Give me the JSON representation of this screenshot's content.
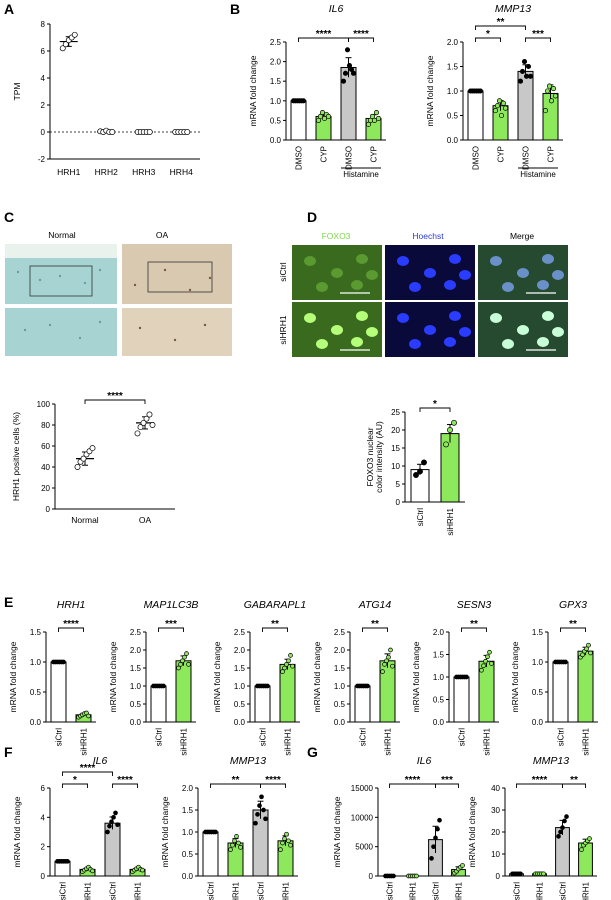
{
  "colors": {
    "green": "#8ee85c",
    "white": "#ffffff",
    "gray": "#c8c8c8",
    "axis": "#000000",
    "fluor_green": "#7fd94a",
    "fluor_blue": "#2430d8",
    "stain_blue": "#a7d4d2",
    "stain_brown": "#c8b8a0"
  },
  "panels": {
    "A": "A",
    "B": "B",
    "C": "C",
    "D": "D",
    "E": "E",
    "F": "F",
    "G": "G"
  },
  "panel_c": {
    "normal": "Normal",
    "oa": "OA"
  },
  "panel_d": {
    "foxo3": "FOXO3",
    "hoechst": "Hoechst",
    "merge": "Merge",
    "sictrl": "siCtrl",
    "sihrh1": "siHRH1"
  },
  "chart_data": [
    {
      "id": "A",
      "type": "scatter",
      "ylabel": "TPM",
      "ylim": [
        -2,
        8
      ],
      "yticks": [
        -2,
        0,
        2,
        4,
        6,
        8
      ],
      "categories": [
        "HRH1",
        "HRH2",
        "HRH3",
        "HRH4"
      ],
      "values": [
        6.7,
        0.0,
        0.0,
        0.0
      ],
      "points": [
        [
          6.2,
          6.5,
          6.8,
          7.0,
          7.2
        ],
        [
          0.05,
          0.0,
          0.1,
          0.0,
          0.0
        ],
        [
          0,
          0,
          0,
          0,
          0
        ],
        [
          0,
          0,
          0,
          0,
          0
        ]
      ],
      "reference_line": 0
    },
    {
      "id": "B1",
      "type": "bar",
      "title": "IL6",
      "ylabel": "mRNA fold change",
      "ylim": [
        0,
        2.5
      ],
      "yticks": [
        0.0,
        0.5,
        1.0,
        1.5,
        2.0,
        2.5
      ],
      "categories": [
        "DMSO",
        "CYP",
        "DMSO",
        "CYP"
      ],
      "group_label": "Histamine",
      "values": [
        1.0,
        0.6,
        1.85,
        0.55
      ],
      "bar_colors": [
        "white",
        "green",
        "gray",
        "green"
      ],
      "points": [
        [
          1,
          1,
          1,
          1,
          1,
          1
        ],
        [
          0.5,
          0.6,
          0.7,
          0.55,
          0.65,
          0.6
        ],
        [
          1.5,
          1.7,
          2.3,
          1.9,
          1.8,
          1.7
        ],
        [
          0.4,
          0.5,
          0.6,
          0.5,
          0.7,
          0.55
        ]
      ],
      "sig": [
        {
          "from": 0,
          "to": 2,
          "label": "****",
          "level": 0
        },
        {
          "from": 2,
          "to": 3,
          "label": "****",
          "level": 0
        }
      ]
    },
    {
      "id": "B2",
      "type": "bar",
      "title": "MMP13",
      "ylabel": "mRNA fold change",
      "ylim": [
        0,
        2.0
      ],
      "yticks": [
        0.0,
        0.5,
        1.0,
        1.5,
        2.0
      ],
      "categories": [
        "DMSO",
        "CYP",
        "DMSO",
        "CYP"
      ],
      "group_label": "Histamine",
      "values": [
        1.0,
        0.7,
        1.4,
        0.95
      ],
      "bar_colors": [
        "white",
        "green",
        "gray",
        "green"
      ],
      "points": [
        [
          1,
          1,
          1,
          1,
          1,
          1
        ],
        [
          0.6,
          0.7,
          0.8,
          0.5,
          0.75,
          0.65
        ],
        [
          1.2,
          1.4,
          1.6,
          1.3,
          1.5,
          1.3
        ],
        [
          0.6,
          1.0,
          1.1,
          0.8,
          1.05,
          0.9
        ]
      ],
      "sig": [
        {
          "from": 0,
          "to": 1,
          "label": "*",
          "level": 0
        },
        {
          "from": 2,
          "to": 3,
          "label": "***",
          "level": 0
        },
        {
          "from": 0,
          "to": 2,
          "label": "**",
          "level": 1
        }
      ]
    },
    {
      "id": "C",
      "type": "scatter",
      "ylabel": "HRH1 positive cells (%)",
      "ylim": [
        0,
        100
      ],
      "yticks": [
        0,
        20,
        40,
        60,
        80,
        100
      ],
      "categories": [
        "Normal",
        "OA"
      ],
      "values": [
        48,
        82
      ],
      "points": [
        [
          40,
          45,
          48,
          52,
          55,
          58
        ],
        [
          72,
          78,
          82,
          86,
          90,
          80
        ]
      ],
      "sig": [
        {
          "from": 0,
          "to": 1,
          "label": "****",
          "level": 0
        }
      ]
    },
    {
      "id": "D",
      "type": "bar",
      "ylabel": "FOXO3 nuclear color intensity (AU)",
      "ylim": [
        0,
        25
      ],
      "yticks": [
        0,
        5,
        10,
        15,
        20,
        25
      ],
      "categories": [
        "siCtrl",
        "siHRH1"
      ],
      "values": [
        9,
        19
      ],
      "bar_colors": [
        "white",
        "green"
      ],
      "points": [
        [
          7.5,
          8.5,
          11
        ],
        [
          16,
          20,
          22
        ]
      ],
      "sig": [
        {
          "from": 0,
          "to": 1,
          "label": "*",
          "level": 0
        }
      ]
    },
    {
      "id": "E1",
      "type": "bar",
      "title": "HRH1",
      "ylabel": "mRNA fold change",
      "ylim": [
        0,
        1.5
      ],
      "yticks": [
        0.0,
        0.5,
        1.0,
        1.5
      ],
      "categories": [
        "siCtrl",
        "siHRH1"
      ],
      "values": [
        1.0,
        0.12
      ],
      "bar_colors": [
        "white",
        "green"
      ],
      "points": [
        [
          1,
          1,
          1,
          1,
          1,
          1
        ],
        [
          0.08,
          0.1,
          0.12,
          0.14,
          0.15,
          0.1
        ]
      ],
      "sig": [
        {
          "from": 0,
          "to": 1,
          "label": "****",
          "level": 0
        }
      ]
    },
    {
      "id": "E2",
      "type": "bar",
      "title": "MAP1LC3B",
      "ylabel": "mRNA fold change",
      "ylim": [
        0,
        2.5
      ],
      "yticks": [
        0.0,
        0.5,
        1.0,
        1.5,
        2.0,
        2.5
      ],
      "categories": [
        "siCtrl",
        "siHRH1"
      ],
      "values": [
        1.0,
        1.7
      ],
      "bar_colors": [
        "white",
        "green"
      ],
      "points": [
        [
          1,
          1,
          1,
          1,
          1,
          1
        ],
        [
          1.5,
          1.6,
          1.7,
          1.8,
          1.9,
          1.6
        ]
      ],
      "sig": [
        {
          "from": 0,
          "to": 1,
          "label": "***",
          "level": 0
        }
      ]
    },
    {
      "id": "E3",
      "type": "bar",
      "title": "GABARAPL1",
      "ylabel": "mRNA fold change",
      "ylim": [
        0,
        2.5
      ],
      "yticks": [
        0.0,
        0.5,
        1.0,
        1.5,
        2.0,
        2.5
      ],
      "categories": [
        "siCtrl",
        "siHRH1"
      ],
      "values": [
        1.0,
        1.6
      ],
      "bar_colors": [
        "white",
        "green"
      ],
      "points": [
        [
          1,
          1,
          1,
          1,
          1,
          1
        ],
        [
          1.4,
          1.5,
          1.6,
          1.7,
          1.85,
          1.55
        ]
      ],
      "sig": [
        {
          "from": 0,
          "to": 1,
          "label": "**",
          "level": 0
        }
      ]
    },
    {
      "id": "E4",
      "type": "bar",
      "title": "ATG14",
      "ylabel": "mRNA fold change",
      "ylim": [
        0,
        2.5
      ],
      "yticks": [
        0.0,
        0.5,
        1.0,
        1.5,
        2.0,
        2.5
      ],
      "categories": [
        "siCtrl",
        "siHRH1"
      ],
      "values": [
        1.0,
        1.7
      ],
      "bar_colors": [
        "white",
        "green"
      ],
      "points": [
        [
          1,
          1,
          1,
          1,
          1,
          1
        ],
        [
          1.4,
          1.6,
          1.7,
          1.8,
          2.0,
          1.55
        ]
      ],
      "sig": [
        {
          "from": 0,
          "to": 1,
          "label": "**",
          "level": 0
        }
      ]
    },
    {
      "id": "E5",
      "type": "bar",
      "title": "SESN3",
      "ylabel": "mRNA fold change",
      "ylim": [
        0,
        2.0
      ],
      "yticks": [
        0.0,
        0.5,
        1.0,
        1.5,
        2.0
      ],
      "categories": [
        "siCtrl",
        "siHRH1"
      ],
      "values": [
        1.0,
        1.35
      ],
      "bar_colors": [
        "white",
        "green"
      ],
      "points": [
        [
          1,
          1,
          1,
          1,
          1,
          1
        ],
        [
          1.15,
          1.25,
          1.35,
          1.45,
          1.55,
          1.3
        ]
      ],
      "sig": [
        {
          "from": 0,
          "to": 1,
          "label": "**",
          "level": 0
        }
      ]
    },
    {
      "id": "E6",
      "type": "bar",
      "title": "GPX3",
      "ylabel": "mRNA fold change",
      "ylim": [
        0,
        1.5
      ],
      "yticks": [
        0.0,
        0.5,
        1.0,
        1.5
      ],
      "categories": [
        "siCtrl",
        "siHRH1"
      ],
      "values": [
        1.0,
        1.18
      ],
      "bar_colors": [
        "white",
        "green"
      ],
      "points": [
        [
          1,
          1,
          1,
          1,
          1,
          1
        ],
        [
          1.08,
          1.12,
          1.18,
          1.22,
          1.28,
          1.15
        ]
      ],
      "sig": [
        {
          "from": 0,
          "to": 1,
          "label": "**",
          "level": 0
        }
      ]
    },
    {
      "id": "F1",
      "type": "bar",
      "title": "IL6",
      "ylabel": "mRNA fold change",
      "ylim": [
        0,
        6
      ],
      "yticks": [
        0,
        2,
        4,
        6
      ],
      "categories": [
        "siCtrl",
        "siHRH1",
        "siCtrl",
        "siHRH1"
      ],
      "group_label": "Histamine",
      "values": [
        1.0,
        0.45,
        3.6,
        0.45
      ],
      "bar_colors": [
        "white",
        "green",
        "gray",
        "green"
      ],
      "points": [
        [
          1,
          1,
          1,
          1,
          1,
          1
        ],
        [
          0.3,
          0.4,
          0.5,
          0.6,
          0.45,
          0.35
        ],
        [
          3.0,
          3.4,
          3.7,
          4.0,
          4.3,
          3.5
        ],
        [
          0.3,
          0.4,
          0.5,
          0.6,
          0.45,
          0.4
        ]
      ],
      "sig": [
        {
          "from": 0,
          "to": 1,
          "label": "*",
          "level": 0
        },
        {
          "from": 2,
          "to": 3,
          "label": "****",
          "level": 0
        },
        {
          "from": 0,
          "to": 2,
          "label": "****",
          "level": 1
        }
      ]
    },
    {
      "id": "F2",
      "type": "bar",
      "title": "MMP13",
      "ylabel": "mRNA fold change",
      "ylim": [
        0,
        2.0
      ],
      "yticks": [
        0.0,
        0.5,
        1.0,
        1.5,
        2.0
      ],
      "categories": [
        "siCtrl",
        "siHRH1",
        "siCtrl",
        "siHRH1"
      ],
      "group_label": "Histamine",
      "values": [
        1.0,
        0.75,
        1.5,
        0.8
      ],
      "bar_colors": [
        "white",
        "green",
        "gray",
        "green"
      ],
      "points": [
        [
          1,
          1,
          1,
          1,
          1,
          1
        ],
        [
          0.6,
          0.7,
          0.8,
          0.9,
          0.75,
          0.65
        ],
        [
          1.2,
          1.4,
          1.6,
          1.8,
          1.5,
          1.3
        ],
        [
          0.6,
          0.75,
          0.85,
          0.95,
          0.8,
          0.7
        ]
      ],
      "sig": [
        {
          "from": 0,
          "to": 2,
          "label": "**",
          "level": 0
        },
        {
          "from": 2,
          "to": 3,
          "label": "****",
          "level": 0
        }
      ]
    },
    {
      "id": "G1",
      "type": "bar",
      "title": "IL6",
      "ylabel": "mRNA fold change",
      "ylim": [
        0,
        15000
      ],
      "yticks": [
        0,
        5000,
        10000,
        15000
      ],
      "categories": [
        "siCtrl",
        "siHRH1",
        "siCtrl",
        "siHRH1"
      ],
      "group_label": "IL-1β",
      "values": [
        10,
        10,
        6200,
        1100
      ],
      "bar_colors": [
        "white",
        "green",
        "gray",
        "green"
      ],
      "points": [
        [
          1,
          1,
          1,
          1,
          1
        ],
        [
          1,
          1,
          1,
          1,
          1
        ],
        [
          3000,
          5000,
          6500,
          8000,
          9500
        ],
        [
          500,
          800,
          1200,
          1500,
          1800
        ]
      ],
      "sig": [
        {
          "from": 0,
          "to": 2,
          "label": "****",
          "level": 0
        },
        {
          "from": 2,
          "to": 3,
          "label": "***",
          "level": 0
        }
      ]
    },
    {
      "id": "G2",
      "type": "bar",
      "title": "MMP13",
      "ylabel": "mRNA fold change",
      "ylim": [
        0,
        40
      ],
      "yticks": [
        0,
        10,
        20,
        30,
        40
      ],
      "categories": [
        "siCtrl",
        "siHRH1",
        "siCtrl",
        "siHRH1"
      ],
      "group_label": "IL-1β",
      "values": [
        1,
        1,
        22,
        15
      ],
      "bar_colors": [
        "white",
        "green",
        "gray",
        "green"
      ],
      "points": [
        [
          1,
          1,
          1,
          1,
          1
        ],
        [
          1,
          1,
          1,
          1,
          1
        ],
        [
          18,
          20,
          22,
          25,
          27
        ],
        [
          12,
          14,
          15,
          16,
          17
        ]
      ],
      "sig": [
        {
          "from": 0,
          "to": 2,
          "label": "****",
          "level": 0
        },
        {
          "from": 2,
          "to": 3,
          "label": "**",
          "level": 0
        }
      ]
    }
  ]
}
